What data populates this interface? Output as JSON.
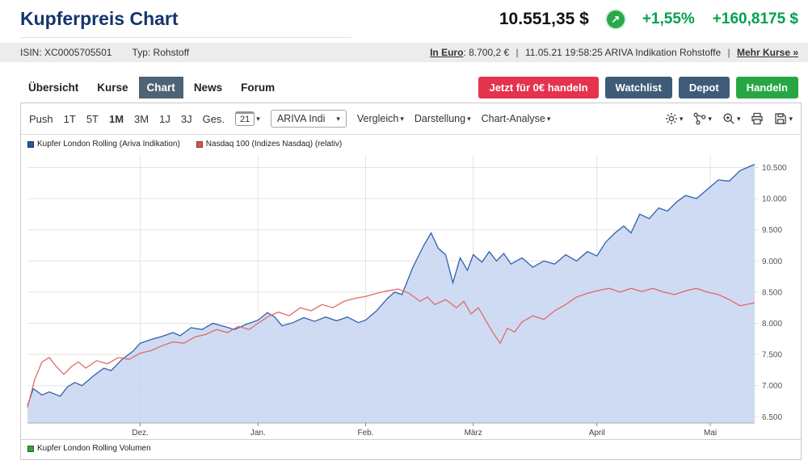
{
  "header": {
    "title": "Kupferpreis Chart",
    "price": "10.551,35 $",
    "change_pct": "+1,55%",
    "change_abs": "+160,8175 $"
  },
  "icons": {
    "chevron_down": "▾",
    "trend_up": "↗"
  },
  "colors": {
    "title_navy": "#15356d",
    "positive_green": "#00a14e",
    "cta_red": "#e5334d",
    "button_slate": "#3e5c77",
    "button_green": "#27a744",
    "active_tab": "#4e6373",
    "series_copper": "#3061ae",
    "series_copper_fill": "rgba(199,213,240,0.85)",
    "series_nasdaq": "#e06a6a"
  },
  "infobar": {
    "isin": "ISIN: XC0005705501",
    "typ": "Typ: Rohstoff",
    "in_euro_link": "In Euro",
    "in_euro_value": ": 8.700,2 €",
    "separator": "|",
    "timestamp": "11.05.21 19:58:25 ARIVA Indikation Rohstoffe",
    "more_link": "Mehr Kurse »"
  },
  "nav": {
    "tabs": [
      {
        "label": "Übersicht",
        "active": false
      },
      {
        "label": "Kurse",
        "active": false
      },
      {
        "label": "Chart",
        "active": true
      },
      {
        "label": "News",
        "active": false
      },
      {
        "label": "Forum",
        "active": false
      }
    ],
    "cta_label": "Jetzt für 0€ handeln",
    "watchlist_label": "Watchlist",
    "depot_label": "Depot",
    "handeln_label": "Handeln"
  },
  "toolbar": {
    "push_label": "Push",
    "ranges": [
      "1T",
      "5T",
      "1M",
      "3M",
      "1J",
      "3J",
      "Ges."
    ],
    "calendar_value": "21",
    "instrument_select": "ARIVA Indi",
    "vergleich_label": "Vergleich",
    "darstellung_label": "Darstellung",
    "chart_analyse_label": "Chart-Analyse"
  },
  "legend": {
    "volume_label": "Kupfer London Rolling Volumen"
  },
  "chart_data": {
    "type": "line",
    "title": "Kupferpreis Chart",
    "ylabel": "",
    "xlabel": "",
    "ylim": [
      6500,
      10500
    ],
    "grid": true,
    "legend_position": "top-left",
    "ytick_values": [
      10500,
      10000,
      9500,
      9000,
      8500,
      8000,
      7500,
      7000,
      6500
    ],
    "ytick_labels": [
      "10.500",
      "10.000",
      "9.500",
      "9.000",
      "8.500",
      "8.000",
      "7.500",
      "7.000",
      "6.500"
    ],
    "x_months": [
      {
        "label": "Dez.",
        "x": 0.155
      },
      {
        "label": "Jan.",
        "x": 0.317
      },
      {
        "label": "Feb.",
        "x": 0.465
      },
      {
        "label": "März",
        "x": 0.613
      },
      {
        "label": "April",
        "x": 0.783
      },
      {
        "label": "Mai",
        "x": 0.939
      }
    ],
    "series": [
      {
        "name": "Kupfer London Rolling (Ariva Indikation)",
        "color": "#3061ae",
        "fill": "rgba(199,213,240,0.85)",
        "points": [
          [
            0.0,
            6680
          ],
          [
            0.008,
            6950
          ],
          [
            0.02,
            6850
          ],
          [
            0.03,
            6900
          ],
          [
            0.045,
            6830
          ],
          [
            0.055,
            6980
          ],
          [
            0.065,
            7050
          ],
          [
            0.075,
            7000
          ],
          [
            0.09,
            7150
          ],
          [
            0.105,
            7280
          ],
          [
            0.115,
            7240
          ],
          [
            0.13,
            7420
          ],
          [
            0.145,
            7550
          ],
          [
            0.155,
            7680
          ],
          [
            0.17,
            7740
          ],
          [
            0.185,
            7790
          ],
          [
            0.2,
            7850
          ],
          [
            0.21,
            7800
          ],
          [
            0.225,
            7930
          ],
          [
            0.24,
            7900
          ],
          [
            0.255,
            8000
          ],
          [
            0.27,
            7950
          ],
          [
            0.285,
            7900
          ],
          [
            0.3,
            7980
          ],
          [
            0.317,
            8050
          ],
          [
            0.33,
            8170
          ],
          [
            0.34,
            8100
          ],
          [
            0.35,
            7960
          ],
          [
            0.365,
            8010
          ],
          [
            0.38,
            8090
          ],
          [
            0.395,
            8030
          ],
          [
            0.41,
            8100
          ],
          [
            0.425,
            8040
          ],
          [
            0.44,
            8100
          ],
          [
            0.455,
            8010
          ],
          [
            0.465,
            8050
          ],
          [
            0.48,
            8200
          ],
          [
            0.495,
            8400
          ],
          [
            0.505,
            8500
          ],
          [
            0.515,
            8460
          ],
          [
            0.53,
            8900
          ],
          [
            0.545,
            9250
          ],
          [
            0.555,
            9450
          ],
          [
            0.565,
            9200
          ],
          [
            0.575,
            9100
          ],
          [
            0.585,
            8650
          ],
          [
            0.595,
            9050
          ],
          [
            0.605,
            8850
          ],
          [
            0.613,
            9100
          ],
          [
            0.625,
            8980
          ],
          [
            0.635,
            9150
          ],
          [
            0.645,
            9000
          ],
          [
            0.655,
            9120
          ],
          [
            0.665,
            8950
          ],
          [
            0.68,
            9050
          ],
          [
            0.695,
            8900
          ],
          [
            0.71,
            9000
          ],
          [
            0.725,
            8950
          ],
          [
            0.74,
            9100
          ],
          [
            0.755,
            9000
          ],
          [
            0.77,
            9150
          ],
          [
            0.783,
            9080
          ],
          [
            0.795,
            9300
          ],
          [
            0.808,
            9450
          ],
          [
            0.82,
            9560
          ],
          [
            0.83,
            9450
          ],
          [
            0.842,
            9750
          ],
          [
            0.855,
            9680
          ],
          [
            0.868,
            9850
          ],
          [
            0.88,
            9800
          ],
          [
            0.893,
            9950
          ],
          [
            0.905,
            10050
          ],
          [
            0.92,
            10000
          ],
          [
            0.935,
            10150
          ],
          [
            0.95,
            10300
          ],
          [
            0.965,
            10280
          ],
          [
            0.98,
            10450
          ],
          [
            1.0,
            10550
          ]
        ]
      },
      {
        "name": "Nasdaq 100 (Indizes Nasdaq) (relativ)",
        "color": "#e06a6a",
        "fill": null,
        "points": [
          [
            0.0,
            6650
          ],
          [
            0.01,
            7100
          ],
          [
            0.02,
            7380
          ],
          [
            0.03,
            7450
          ],
          [
            0.04,
            7300
          ],
          [
            0.05,
            7180
          ],
          [
            0.06,
            7300
          ],
          [
            0.07,
            7380
          ],
          [
            0.08,
            7280
          ],
          [
            0.095,
            7400
          ],
          [
            0.11,
            7350
          ],
          [
            0.125,
            7450
          ],
          [
            0.14,
            7420
          ],
          [
            0.155,
            7520
          ],
          [
            0.17,
            7560
          ],
          [
            0.185,
            7640
          ],
          [
            0.2,
            7700
          ],
          [
            0.215,
            7680
          ],
          [
            0.23,
            7780
          ],
          [
            0.245,
            7820
          ],
          [
            0.26,
            7900
          ],
          [
            0.275,
            7850
          ],
          [
            0.29,
            7950
          ],
          [
            0.305,
            7900
          ],
          [
            0.317,
            8000
          ],
          [
            0.33,
            8100
          ],
          [
            0.345,
            8180
          ],
          [
            0.36,
            8120
          ],
          [
            0.375,
            8250
          ],
          [
            0.39,
            8200
          ],
          [
            0.405,
            8300
          ],
          [
            0.42,
            8250
          ],
          [
            0.435,
            8350
          ],
          [
            0.45,
            8400
          ],
          [
            0.465,
            8430
          ],
          [
            0.48,
            8480
          ],
          [
            0.495,
            8520
          ],
          [
            0.51,
            8550
          ],
          [
            0.525,
            8480
          ],
          [
            0.54,
            8350
          ],
          [
            0.55,
            8420
          ],
          [
            0.56,
            8300
          ],
          [
            0.575,
            8380
          ],
          [
            0.59,
            8250
          ],
          [
            0.6,
            8350
          ],
          [
            0.61,
            8150
          ],
          [
            0.62,
            8250
          ],
          [
            0.63,
            8050
          ],
          [
            0.64,
            7850
          ],
          [
            0.65,
            7680
          ],
          [
            0.66,
            7920
          ],
          [
            0.67,
            7860
          ],
          [
            0.68,
            8020
          ],
          [
            0.695,
            8120
          ],
          [
            0.71,
            8060
          ],
          [
            0.725,
            8200
          ],
          [
            0.74,
            8300
          ],
          [
            0.755,
            8420
          ],
          [
            0.77,
            8480
          ],
          [
            0.783,
            8520
          ],
          [
            0.8,
            8560
          ],
          [
            0.815,
            8500
          ],
          [
            0.83,
            8560
          ],
          [
            0.845,
            8510
          ],
          [
            0.86,
            8560
          ],
          [
            0.875,
            8500
          ],
          [
            0.89,
            8460
          ],
          [
            0.905,
            8520
          ],
          [
            0.92,
            8560
          ],
          [
            0.935,
            8500
          ],
          [
            0.95,
            8460
          ],
          [
            0.965,
            8380
          ],
          [
            0.98,
            8280
          ],
          [
            1.0,
            8330
          ]
        ]
      }
    ]
  }
}
